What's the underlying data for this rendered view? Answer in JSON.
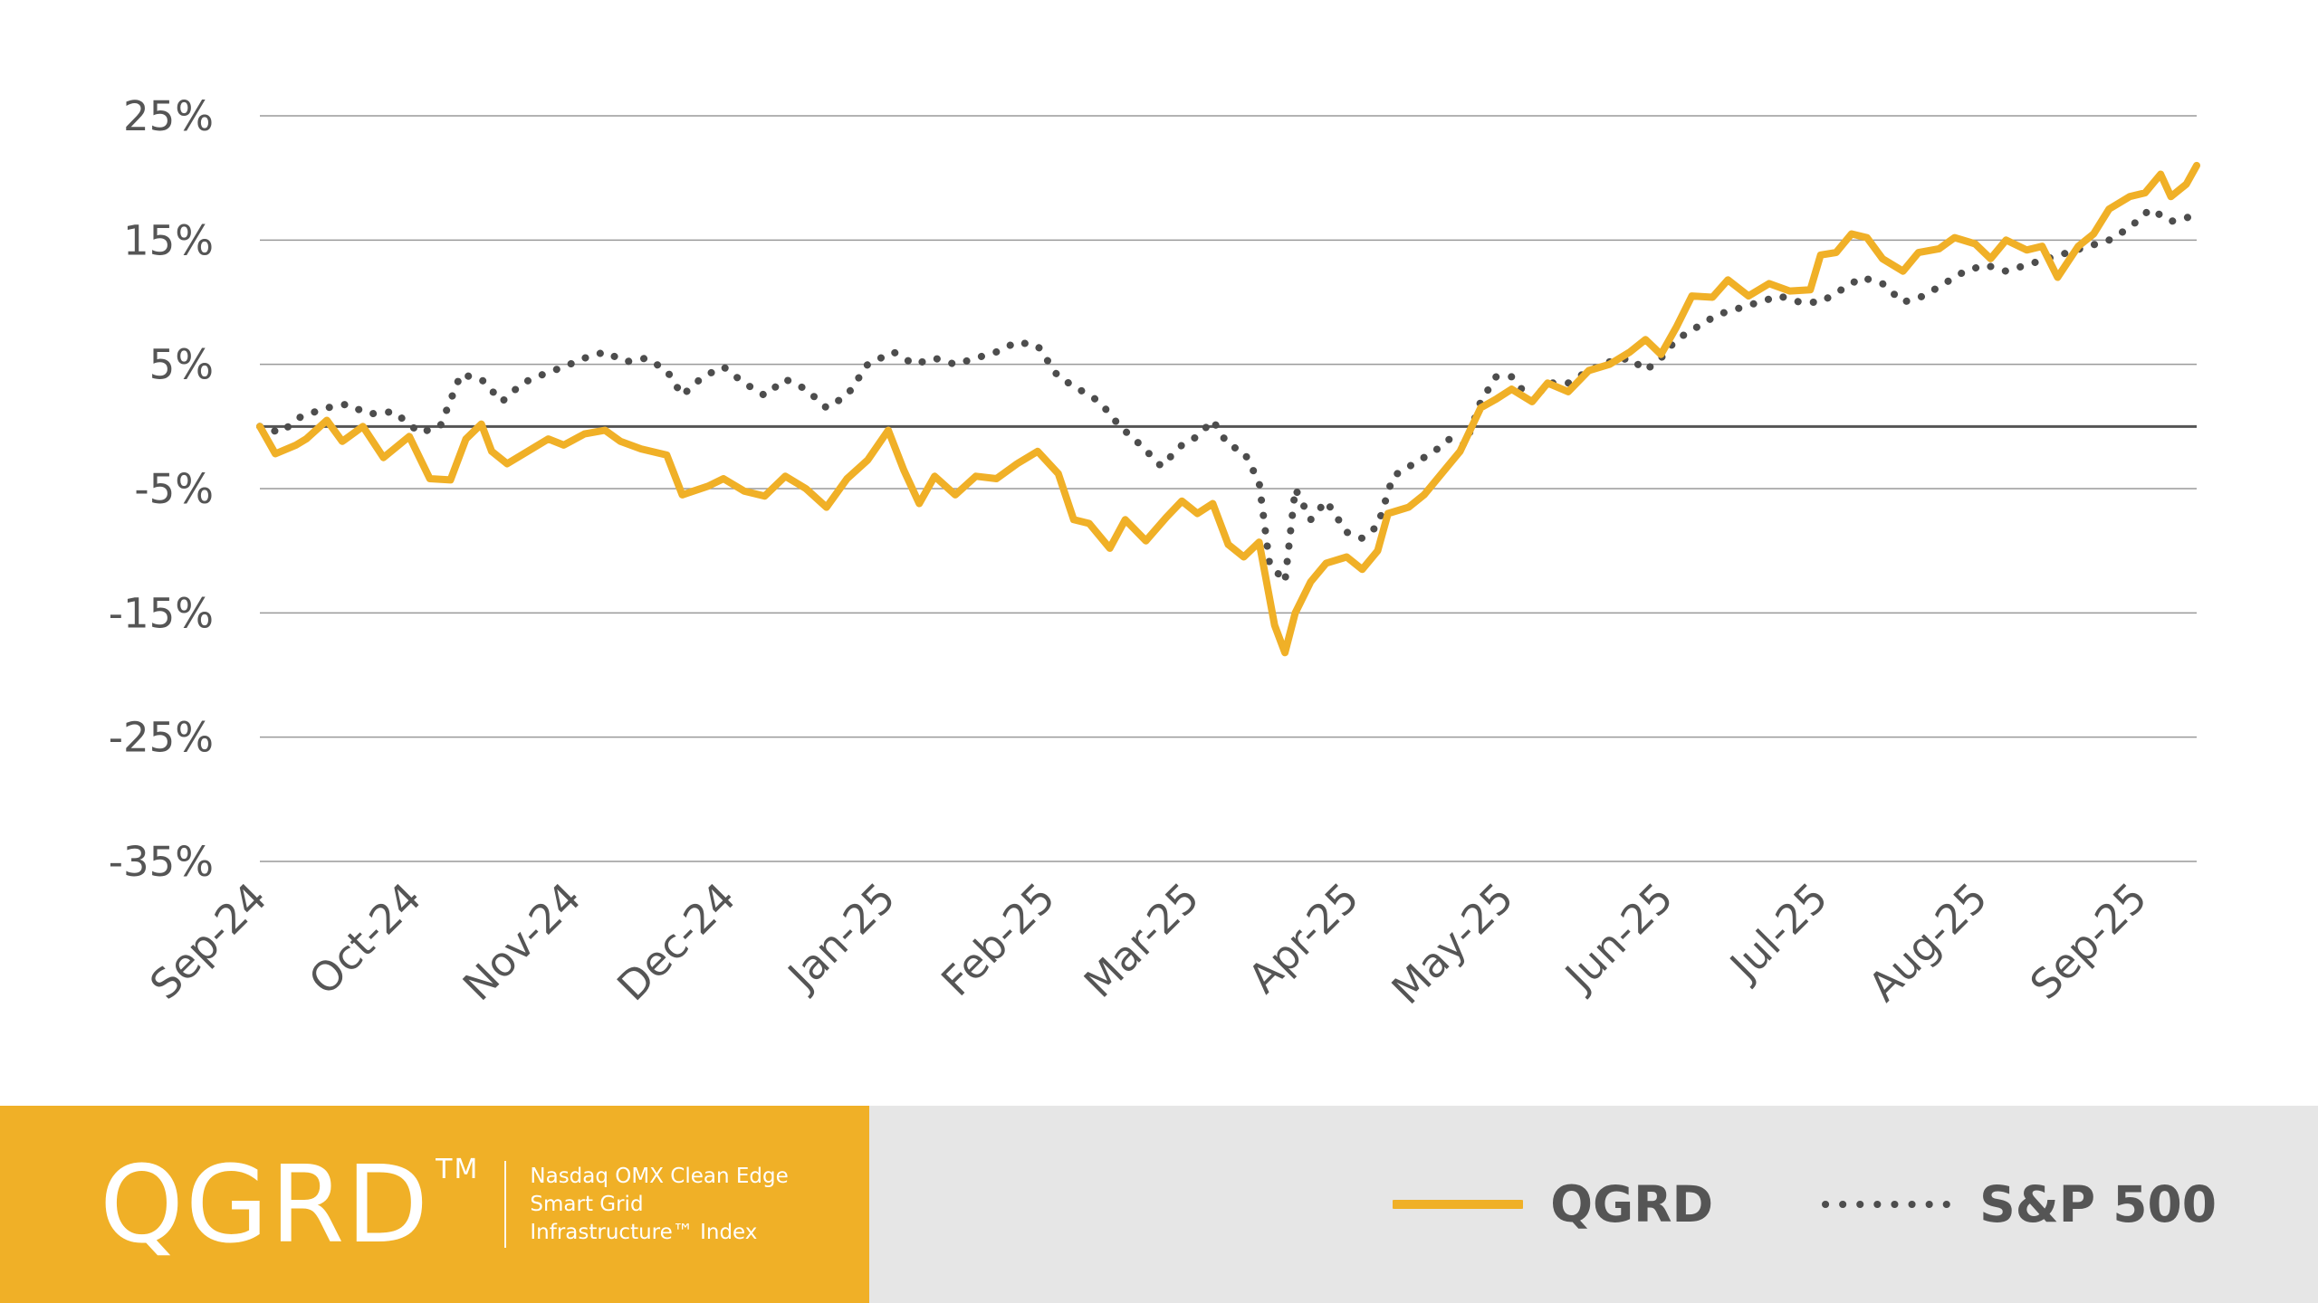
{
  "brand": {
    "ticker": "QGRD",
    "trademark": "TM",
    "description": "Nasdaq OMX Clean Edge Smart Grid Infrastructure™ Index",
    "color": "#f0b027"
  },
  "legend": {
    "items": [
      {
        "label": "QGRD",
        "style": "solid",
        "color": "#f0b027"
      },
      {
        "label": "S&P 500",
        "style": "dotted",
        "color": "#4d4d4d"
      }
    ],
    "placement": "bottom-right"
  },
  "chart_data": {
    "type": "line",
    "title": "",
    "xlabel": "",
    "ylabel": "",
    "ylim": [
      -35,
      25
    ],
    "xlim": [
      "2024-09-01",
      "2025-09-12"
    ],
    "y_ticks": [
      25,
      15,
      5,
      -5,
      -15,
      -25,
      -35
    ],
    "y_tick_labels": [
      "25%",
      "15%",
      "5%",
      "-5%",
      "-15%",
      "-25%",
      "-35%"
    ],
    "x_ticks": [
      "2024-09-01",
      "2024-10-01",
      "2024-11-01",
      "2024-12-01",
      "2025-01-01",
      "2025-02-01",
      "2025-03-01",
      "2025-04-01",
      "2025-05-01",
      "2025-06-01",
      "2025-07-01",
      "2025-08-01",
      "2025-09-01"
    ],
    "x_tick_labels": [
      "Sep-24",
      "Oct-24",
      "Nov-24",
      "Dec-24",
      "Jan-25",
      "Feb-25",
      "Mar-25",
      "Apr-25",
      "May-25",
      "Jun-25",
      "Jul-25",
      "Aug-25",
      "Sep-25"
    ],
    "grid": true,
    "zero_line": true,
    "series": [
      {
        "name": "QGRD",
        "style": "solid",
        "color": "#f0b027",
        "points": [
          [
            "2024-09-01",
            0.0
          ],
          [
            "2024-09-04",
            -2.2
          ],
          [
            "2024-09-08",
            -1.5
          ],
          [
            "2024-09-10",
            -1.0
          ],
          [
            "2024-09-14",
            0.5
          ],
          [
            "2024-09-17",
            -1.2
          ],
          [
            "2024-09-21",
            0.0
          ],
          [
            "2024-09-25",
            -2.5
          ],
          [
            "2024-09-30",
            -0.8
          ],
          [
            "2024-10-04",
            -4.2
          ],
          [
            "2024-10-08",
            -4.3
          ],
          [
            "2024-10-11",
            -1.0
          ],
          [
            "2024-10-14",
            0.2
          ],
          [
            "2024-10-16",
            -2.0
          ],
          [
            "2024-10-19",
            -3.0
          ],
          [
            "2024-10-23",
            -2.0
          ],
          [
            "2024-10-27",
            -1.0
          ],
          [
            "2024-10-30",
            -1.5
          ],
          [
            "2024-11-03",
            -0.6
          ],
          [
            "2024-11-07",
            -0.3
          ],
          [
            "2024-11-10",
            -1.2
          ],
          [
            "2024-11-14",
            -1.8
          ],
          [
            "2024-11-19",
            -2.3
          ],
          [
            "2024-11-22",
            -5.5
          ],
          [
            "2024-11-27",
            -4.8
          ],
          [
            "2024-11-30",
            -4.2
          ],
          [
            "2024-12-04",
            -5.2
          ],
          [
            "2024-12-08",
            -5.6
          ],
          [
            "2024-12-12",
            -4.0
          ],
          [
            "2024-12-16",
            -5.0
          ],
          [
            "2024-12-20",
            -6.5
          ],
          [
            "2024-12-24",
            -4.2
          ],
          [
            "2024-12-28",
            -2.7
          ],
          [
            "2025-01-01",
            -0.3
          ],
          [
            "2025-01-04",
            -3.5
          ],
          [
            "2025-01-07",
            -6.2
          ],
          [
            "2025-01-10",
            -4.0
          ],
          [
            "2025-01-14",
            -5.5
          ],
          [
            "2025-01-18",
            -4.0
          ],
          [
            "2025-01-22",
            -4.2
          ],
          [
            "2025-01-26",
            -3.0
          ],
          [
            "2025-01-30",
            -2.0
          ],
          [
            "2025-02-03",
            -3.8
          ],
          [
            "2025-02-06",
            -7.5
          ],
          [
            "2025-02-09",
            -7.8
          ],
          [
            "2025-02-13",
            -9.8
          ],
          [
            "2025-02-16",
            -7.5
          ],
          [
            "2025-02-20",
            -9.2
          ],
          [
            "2025-02-24",
            -7.3
          ],
          [
            "2025-02-27",
            -6.0
          ],
          [
            "2025-03-02",
            -7.0
          ],
          [
            "2025-03-05",
            -6.2
          ],
          [
            "2025-03-08",
            -9.5
          ],
          [
            "2025-03-11",
            -10.5
          ],
          [
            "2025-03-14",
            -9.3
          ],
          [
            "2025-03-17",
            -16.0
          ],
          [
            "2025-03-19",
            -18.2
          ],
          [
            "2025-03-21",
            -15.0
          ],
          [
            "2025-03-24",
            -12.5
          ],
          [
            "2025-03-27",
            -11.0
          ],
          [
            "2025-03-31",
            -10.5
          ],
          [
            "2025-04-03",
            -11.5
          ],
          [
            "2025-04-06",
            -10.0
          ],
          [
            "2025-04-08",
            -7.0
          ],
          [
            "2025-04-12",
            -6.5
          ],
          [
            "2025-04-15",
            -5.5
          ],
          [
            "2025-04-19",
            -3.5
          ],
          [
            "2025-04-22",
            -2.0
          ],
          [
            "2025-04-26",
            1.5
          ],
          [
            "2025-04-29",
            2.2
          ],
          [
            "2025-05-02",
            3.0
          ],
          [
            "2025-05-06",
            2.0
          ],
          [
            "2025-05-09",
            3.5
          ],
          [
            "2025-05-13",
            2.8
          ],
          [
            "2025-05-17",
            4.5
          ],
          [
            "2025-05-21",
            5.0
          ],
          [
            "2025-05-25",
            6.0
          ],
          [
            "2025-05-28",
            7.0
          ],
          [
            "2025-05-31",
            5.8
          ],
          [
            "2025-06-03",
            8.0
          ],
          [
            "2025-06-06",
            10.5
          ],
          [
            "2025-06-10",
            10.4
          ],
          [
            "2025-06-13",
            11.8
          ],
          [
            "2025-06-17",
            10.5
          ],
          [
            "2025-06-21",
            11.5
          ],
          [
            "2025-06-25",
            10.9
          ],
          [
            "2025-06-29",
            11.0
          ],
          [
            "2025-07-01",
            13.8
          ],
          [
            "2025-07-04",
            14.0
          ],
          [
            "2025-07-07",
            15.5
          ],
          [
            "2025-07-10",
            15.2
          ],
          [
            "2025-07-13",
            13.5
          ],
          [
            "2025-07-17",
            12.5
          ],
          [
            "2025-07-20",
            14.0
          ],
          [
            "2025-07-24",
            14.3
          ],
          [
            "2025-07-27",
            15.2
          ],
          [
            "2025-07-31",
            14.7
          ],
          [
            "2025-08-03",
            13.5
          ],
          [
            "2025-08-06",
            15.0
          ],
          [
            "2025-08-10",
            14.2
          ],
          [
            "2025-08-13",
            14.5
          ],
          [
            "2025-08-16",
            12.0
          ],
          [
            "2025-08-20",
            14.5
          ],
          [
            "2025-08-23",
            15.5
          ],
          [
            "2025-08-26",
            17.5
          ],
          [
            "2025-08-30",
            18.5
          ],
          [
            "2025-09-02",
            18.8
          ],
          [
            "2025-09-05",
            20.3
          ],
          [
            "2025-09-07",
            18.5
          ],
          [
            "2025-09-10",
            19.5
          ],
          [
            "2025-09-12",
            21.0
          ]
        ]
      },
      {
        "name": "S&P 500",
        "style": "dotted",
        "color": "#4d4d4d",
        "points": [
          [
            "2024-09-01",
            0.0
          ],
          [
            "2024-09-05",
            -0.5
          ],
          [
            "2024-09-09",
            0.8
          ],
          [
            "2024-09-14",
            1.5
          ],
          [
            "2024-09-18",
            1.8
          ],
          [
            "2024-09-22",
            1.0
          ],
          [
            "2024-09-27",
            1.2
          ],
          [
            "2024-10-02",
            -0.5
          ],
          [
            "2024-10-06",
            0.0
          ],
          [
            "2024-10-10",
            4.2
          ],
          [
            "2024-10-14",
            3.8
          ],
          [
            "2024-10-18",
            2.0
          ],
          [
            "2024-10-22",
            3.5
          ],
          [
            "2024-10-26",
            4.2
          ],
          [
            "2024-10-30",
            4.8
          ],
          [
            "2024-11-03",
            5.5
          ],
          [
            "2024-11-07",
            6.0
          ],
          [
            "2024-11-11",
            5.2
          ],
          [
            "2024-11-15",
            5.5
          ],
          [
            "2024-11-19",
            4.5
          ],
          [
            "2024-11-22",
            2.5
          ],
          [
            "2024-11-26",
            4.0
          ],
          [
            "2024-11-30",
            4.8
          ],
          [
            "2024-12-04",
            3.5
          ],
          [
            "2024-12-08",
            2.5
          ],
          [
            "2024-12-12",
            3.8
          ],
          [
            "2024-12-16",
            3.0
          ],
          [
            "2024-12-20",
            1.5
          ],
          [
            "2024-12-24",
            2.5
          ],
          [
            "2024-12-28",
            5.0
          ],
          [
            "2025-01-02",
            6.0
          ],
          [
            "2025-01-06",
            5.0
          ],
          [
            "2025-01-10",
            5.5
          ],
          [
            "2025-01-14",
            5.0
          ],
          [
            "2025-01-18",
            5.5
          ],
          [
            "2025-01-22",
            6.0
          ],
          [
            "2025-01-26",
            6.8
          ],
          [
            "2025-01-30",
            6.5
          ],
          [
            "2025-02-03",
            4.0
          ],
          [
            "2025-02-07",
            3.0
          ],
          [
            "2025-02-11",
            2.0
          ],
          [
            "2025-02-15",
            0.0
          ],
          [
            "2025-02-19",
            -1.5
          ],
          [
            "2025-02-23",
            -3.2
          ],
          [
            "2025-02-27",
            -1.5
          ],
          [
            "2025-03-02",
            -0.8
          ],
          [
            "2025-03-05",
            0.5
          ],
          [
            "2025-03-08",
            -1.5
          ],
          [
            "2025-03-11",
            -2.0
          ],
          [
            "2025-03-14",
            -4.5
          ],
          [
            "2025-03-16",
            -11.0
          ],
          [
            "2025-03-19",
            -12.5
          ],
          [
            "2025-03-21",
            -5.0
          ],
          [
            "2025-03-24",
            -7.5
          ],
          [
            "2025-03-27",
            -6.0
          ],
          [
            "2025-03-31",
            -8.5
          ],
          [
            "2025-04-03",
            -9.0
          ],
          [
            "2025-04-06",
            -8.0
          ],
          [
            "2025-04-09",
            -4.0
          ],
          [
            "2025-04-13",
            -3.0
          ],
          [
            "2025-04-17",
            -2.0
          ],
          [
            "2025-04-20",
            -1.0
          ],
          [
            "2025-04-23",
            -1.5
          ],
          [
            "2025-04-26",
            2.0
          ],
          [
            "2025-04-29",
            4.0
          ],
          [
            "2025-05-02",
            4.0
          ],
          [
            "2025-05-06",
            2.0
          ],
          [
            "2025-05-09",
            3.5
          ],
          [
            "2025-05-13",
            3.5
          ],
          [
            "2025-05-17",
            4.5
          ],
          [
            "2025-05-21",
            5.2
          ],
          [
            "2025-05-25",
            5.5
          ],
          [
            "2025-05-28",
            4.5
          ],
          [
            "2025-05-31",
            5.5
          ],
          [
            "2025-06-03",
            7.0
          ],
          [
            "2025-06-07",
            8.0
          ],
          [
            "2025-06-11",
            9.0
          ],
          [
            "2025-06-15",
            9.5
          ],
          [
            "2025-06-19",
            10.0
          ],
          [
            "2025-06-23",
            10.5
          ],
          [
            "2025-06-27",
            10.0
          ],
          [
            "2025-07-01",
            10.0
          ],
          [
            "2025-07-05",
            11.0
          ],
          [
            "2025-07-09",
            12.0
          ],
          [
            "2025-07-13",
            11.5
          ],
          [
            "2025-07-17",
            10.0
          ],
          [
            "2025-07-21",
            10.5
          ],
          [
            "2025-07-25",
            11.5
          ],
          [
            "2025-07-29",
            12.5
          ],
          [
            "2025-08-02",
            13.0
          ],
          [
            "2025-08-06",
            12.5
          ],
          [
            "2025-08-10",
            13.0
          ],
          [
            "2025-08-14",
            13.5
          ],
          [
            "2025-08-18",
            14.0
          ],
          [
            "2025-08-22",
            14.5
          ],
          [
            "2025-08-26",
            15.0
          ],
          [
            "2025-08-30",
            16.0
          ],
          [
            "2025-09-03",
            17.5
          ],
          [
            "2025-09-07",
            16.5
          ],
          [
            "2025-09-12",
            17.0
          ]
        ]
      }
    ]
  }
}
